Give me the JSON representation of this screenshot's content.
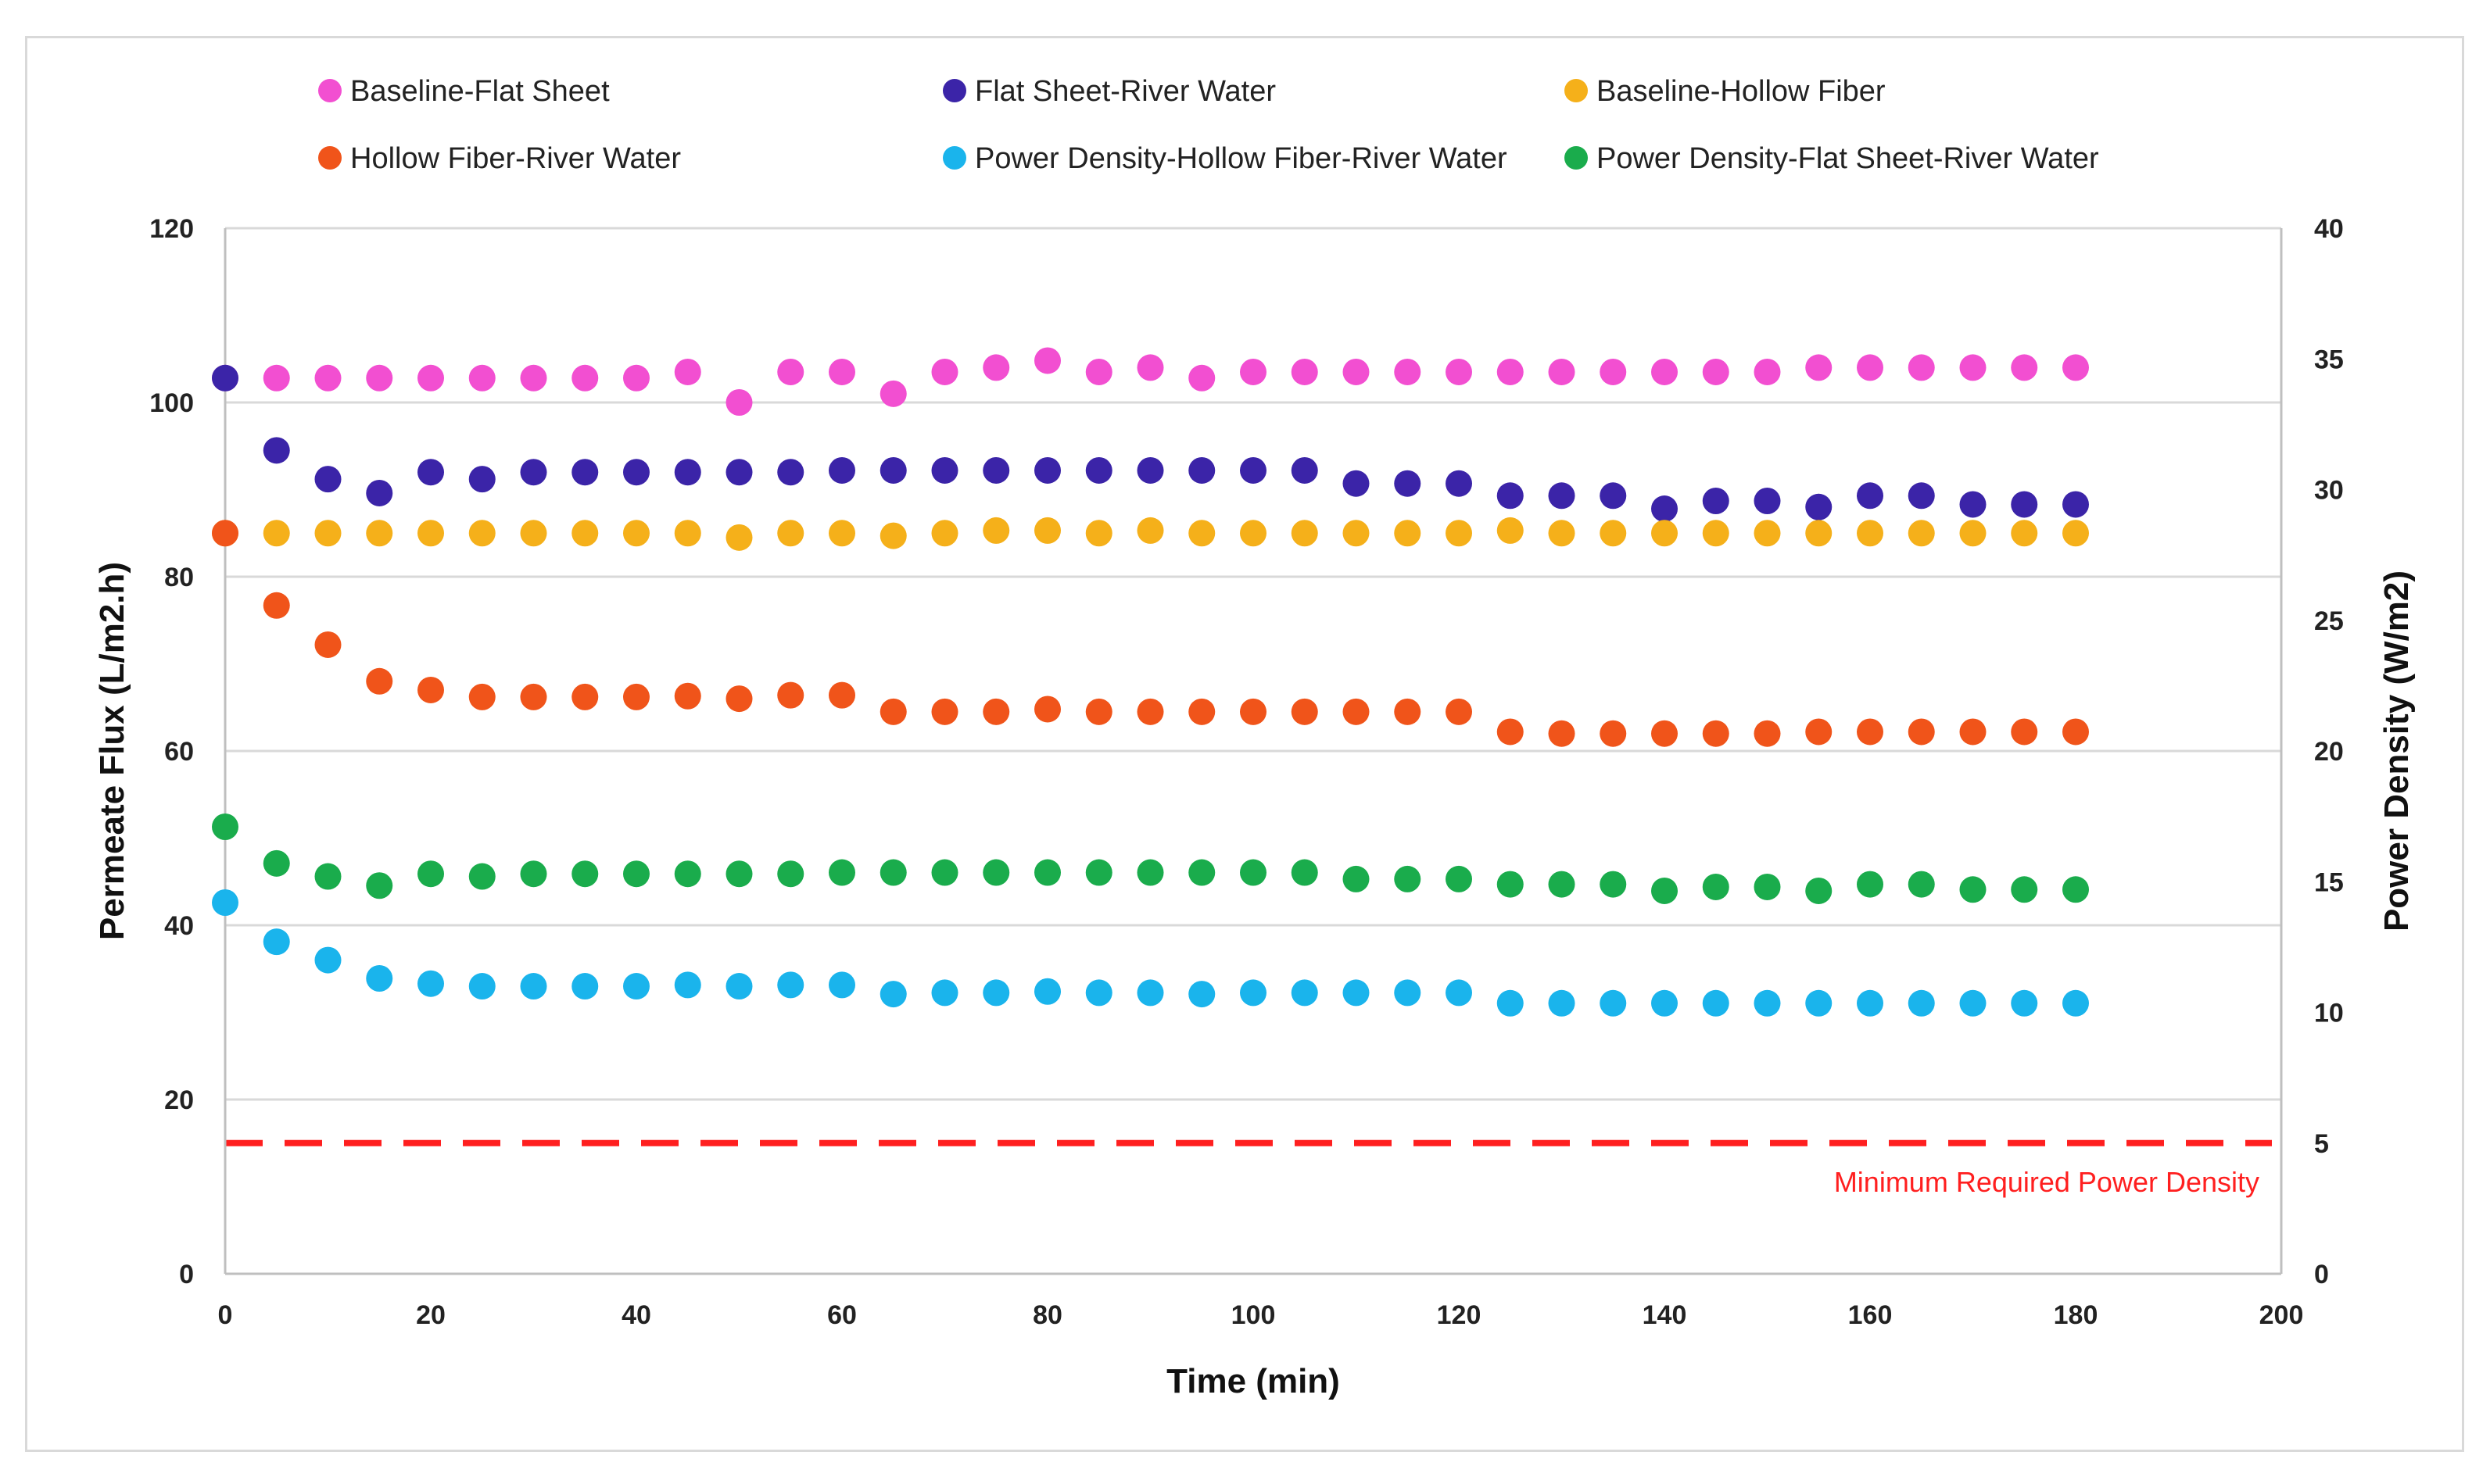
{
  "chart_data": {
    "type": "scatter",
    "xlabel": "Time (min)",
    "ylabel": "Permeate Flux (L/m2.h)",
    "y2label": "Power Density (W/m2)",
    "xlim": [
      0,
      200
    ],
    "ylim": [
      0,
      120
    ],
    "y2lim": [
      0,
      40
    ],
    "xticks": [
      0,
      20,
      40,
      60,
      80,
      100,
      120,
      140,
      160,
      180,
      200
    ],
    "yticks": [
      0,
      20,
      40,
      60,
      80,
      100,
      120
    ],
    "y2ticks": [
      0,
      5,
      10,
      15,
      20,
      25,
      30,
      35,
      40
    ],
    "grid": "horizontal",
    "legend_position": "top",
    "x": [
      0,
      5,
      10,
      15,
      20,
      25,
      30,
      35,
      40,
      45,
      50,
      55,
      60,
      65,
      70,
      75,
      80,
      85,
      90,
      95,
      100,
      105,
      110,
      115,
      120,
      125,
      130,
      135,
      140,
      145,
      150,
      155,
      160,
      165,
      170,
      175,
      180
    ],
    "series": [
      {
        "name": "Baseline-Flat Sheet",
        "color": "#f24fd1",
        "axis": "left",
        "values": [
          102.8,
          102.8,
          102.8,
          102.8,
          102.8,
          102.8,
          102.8,
          102.8,
          102.8,
          103.5,
          100.0,
          103.5,
          103.5,
          101.0,
          103.5,
          104.0,
          104.8,
          103.5,
          104.0,
          102.8,
          103.5,
          103.5,
          103.5,
          103.5,
          103.5,
          103.5,
          103.5,
          103.5,
          103.5,
          103.5,
          103.5,
          104.0,
          104.0,
          104.0,
          104.0,
          104.0,
          104.0
        ]
      },
      {
        "name": "Flat Sheet-River Water",
        "color": "#3b24a8",
        "axis": "left",
        "values": [
          102.8,
          94.5,
          91.2,
          89.6,
          92.0,
          91.2,
          92.0,
          92.0,
          92.0,
          92.0,
          92.0,
          92.0,
          92.2,
          92.2,
          92.2,
          92.2,
          92.2,
          92.2,
          92.2,
          92.2,
          92.2,
          92.2,
          90.7,
          90.7,
          90.7,
          89.3,
          89.3,
          89.3,
          87.8,
          88.7,
          88.7,
          88.0,
          89.3,
          89.3,
          88.3,
          88.3,
          88.3
        ]
      },
      {
        "name": "Baseline-Hollow Fiber",
        "color": "#f5b01a",
        "axis": "left",
        "values": [
          85.0,
          85.0,
          85.0,
          85.0,
          85.0,
          85.0,
          85.0,
          85.0,
          85.0,
          85.0,
          84.5,
          85.0,
          85.0,
          84.7,
          85.0,
          85.3,
          85.3,
          85.0,
          85.3,
          85.0,
          85.0,
          85.0,
          85.0,
          85.0,
          85.0,
          85.3,
          85.0,
          85.0,
          85.0,
          85.0,
          85.0,
          85.0,
          85.0,
          85.0,
          85.0,
          85.0,
          85.0
        ]
      },
      {
        "name": "Hollow Fiber-River Water",
        "color": "#f0541a",
        "axis": "left",
        "values": [
          85.0,
          76.7,
          72.2,
          68.0,
          67.0,
          66.2,
          66.2,
          66.2,
          66.2,
          66.3,
          66.0,
          66.4,
          66.4,
          64.5,
          64.5,
          64.5,
          64.8,
          64.5,
          64.5,
          64.5,
          64.5,
          64.5,
          64.5,
          64.5,
          64.5,
          62.2,
          62.0,
          62.0,
          62.0,
          62.0,
          62.0,
          62.2,
          62.2,
          62.2,
          62.2,
          62.2,
          62.2
        ]
      },
      {
        "name": "Power Density-Hollow Fiber-River Water",
        "color": "#1ab4ec",
        "axis": "right",
        "values": [
          14.2,
          12.7,
          12.0,
          11.3,
          11.1,
          11.0,
          11.0,
          11.0,
          11.0,
          11.05,
          11.0,
          11.05,
          11.05,
          10.7,
          10.75,
          10.75,
          10.8,
          10.75,
          10.75,
          10.7,
          10.75,
          10.75,
          10.75,
          10.75,
          10.75,
          10.35,
          10.35,
          10.35,
          10.35,
          10.35,
          10.35,
          10.35,
          10.35,
          10.35,
          10.35,
          10.35,
          10.35
        ]
      },
      {
        "name": "Power Density-Flat Sheet-River Water",
        "color": "#1aac4c",
        "axis": "right",
        "values": [
          17.1,
          15.7,
          15.2,
          14.85,
          15.3,
          15.2,
          15.3,
          15.3,
          15.3,
          15.3,
          15.3,
          15.3,
          15.35,
          15.35,
          15.35,
          15.35,
          15.35,
          15.35,
          15.35,
          15.35,
          15.35,
          15.35,
          15.1,
          15.1,
          15.1,
          14.9,
          14.9,
          14.9,
          14.65,
          14.8,
          14.8,
          14.65,
          14.9,
          14.9,
          14.7,
          14.7,
          14.7
        ]
      }
    ],
    "reference_line": {
      "label": "Minimum Required Power Density",
      "axis": "right",
      "value": 5,
      "color": "#ff1f1f"
    }
  }
}
